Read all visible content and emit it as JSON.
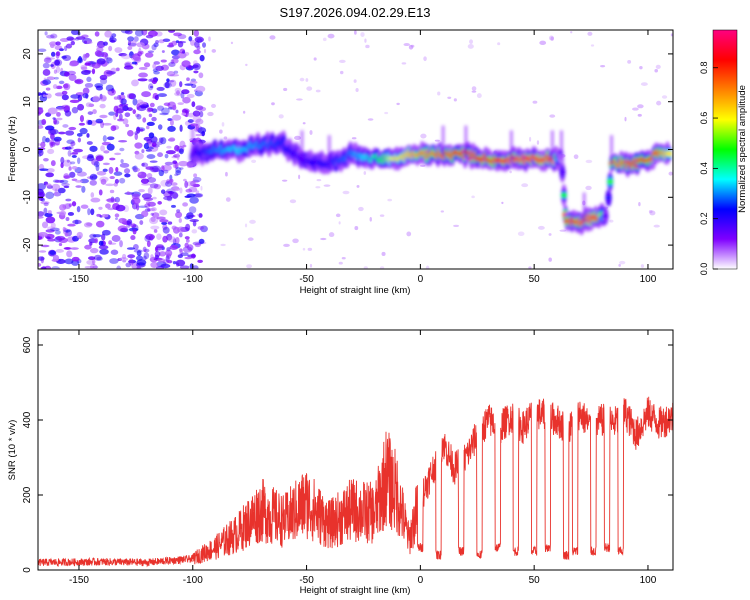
{
  "title": "S197.2026.094.02.29.E13",
  "chart_data": [
    {
      "type": "heatmap",
      "name": "spectrogram",
      "xlabel": "Height of straight line (km)",
      "ylabel": "Frequency (Hz)",
      "xlim": [
        -168,
        111
      ],
      "ylim": [
        -25,
        25
      ],
      "xticks": [
        -150,
        -100,
        -50,
        0,
        50,
        100
      ],
      "yticks": [
        -20,
        -10,
        0,
        10,
        20
      ],
      "noise_region_x": [
        -168,
        -100
      ],
      "ridge": {
        "x": [
          -100,
          -90,
          -80,
          -70,
          -60,
          -52,
          -40,
          -30,
          -20,
          -12,
          -5,
          0,
          10,
          20,
          30,
          40,
          50,
          58,
          62,
          64,
          72,
          78,
          82,
          84,
          95,
          105,
          110
        ],
        "y": [
          -1,
          0,
          0,
          1,
          1,
          -2,
          -3,
          -1,
          -2,
          -2,
          -1,
          -1,
          -1,
          -1,
          -2,
          -2,
          -2,
          -2,
          -2,
          -15,
          -15,
          -14,
          -14,
          -3,
          -3,
          -1,
          -1
        ],
        "amp": [
          0.2,
          0.3,
          0.35,
          0.3,
          0.25,
          0.2,
          0.25,
          0.3,
          0.4,
          0.6,
          0.65,
          0.7,
          0.75,
          0.8,
          0.85,
          0.9,
          0.9,
          0.9,
          0.0,
          0.85,
          0.9,
          0.9,
          0.0,
          0.7,
          0.8,
          0.75,
          0.6
        ]
      },
      "colorbar": {
        "label": "Normalized spectral amplitude",
        "range": [
          0.0,
          0.95
        ],
        "ticks": [
          "0.0",
          "0.2",
          "0.4",
          "0.6",
          "0.8"
        ],
        "colors": [
          "#ffffff",
          "#7f00ff",
          "#0000ff",
          "#00ffff",
          "#00ff00",
          "#ffff00",
          "#ff8000",
          "#ff0000",
          "#ff0080"
        ]
      }
    },
    {
      "type": "line",
      "name": "snr",
      "xlabel": "Height of straight line (km)",
      "ylabel": "SNR (10 * v/v)",
      "xlim": [
        -168,
        111
      ],
      "ylim": [
        0,
        640
      ],
      "xticks": [
        -150,
        -100,
        -50,
        0,
        50,
        100
      ],
      "yticks": [
        0,
        200,
        400,
        600
      ],
      "color": "#e8322c",
      "series": [
        {
          "name": "SNR",
          "x": [
            -168,
            -140,
            -120,
            -100,
            -90,
            -80,
            -70,
            -60,
            -50,
            -40,
            -30,
            -20,
            -15,
            -10,
            -5,
            0,
            5,
            10,
            15,
            20,
            25,
            30,
            35,
            40,
            45,
            50,
            55,
            60,
            65,
            70,
            75,
            80,
            85,
            90,
            95,
            100,
            105,
            111
          ],
          "y": [
            20,
            22,
            20,
            30,
            60,
            100,
            160,
            130,
            180,
            120,
            160,
            150,
            250,
            200,
            80,
            190,
            260,
            340,
            270,
            300,
            360,
            400,
            380,
            410,
            380,
            420,
            410,
            400,
            370,
            420,
            380,
            400,
            390,
            420,
            360,
            420,
            390,
            410
          ]
        }
      ],
      "drops": {
        "x": [
          0,
          8,
          18,
          26,
          34,
          42,
          50,
          56,
          64,
          68,
          76,
          82,
          88
        ],
        "y": [
          60,
          40,
          50,
          40,
          60,
          50,
          50,
          60,
          40,
          50,
          50,
          60,
          50
        ]
      }
    }
  ]
}
